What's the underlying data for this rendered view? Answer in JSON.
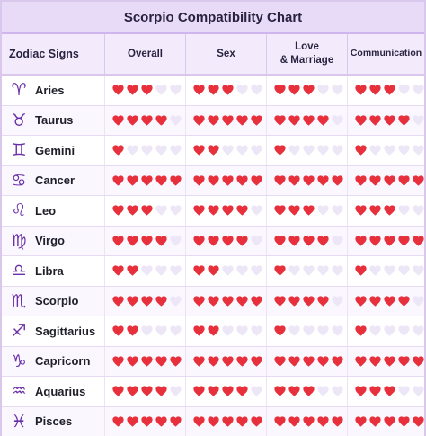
{
  "chart_data": {
    "type": "table",
    "title": "Scorpio Compatibility Chart",
    "row_header": "Zodiac Signs",
    "columns": [
      "Overall",
      "Sex",
      "Love\n& Marriage",
      "Communication"
    ],
    "scale_max": 5,
    "colors": {
      "filled_heart": "#e8303c",
      "empty_heart": "#ece6f7",
      "glyph": "#6a2fa8",
      "title_bg": "#e8dbf8"
    },
    "rows": [
      {
        "sign": "Aries",
        "glyph": "♈",
        "values": [
          3,
          3,
          3,
          3
        ]
      },
      {
        "sign": "Taurus",
        "glyph": "♉",
        "values": [
          4,
          5,
          4,
          4
        ]
      },
      {
        "sign": "Gemini",
        "glyph": "♊",
        "values": [
          1,
          2,
          1,
          1
        ]
      },
      {
        "sign": "Cancer",
        "glyph": "♋",
        "values": [
          5,
          5,
          5,
          5
        ]
      },
      {
        "sign": "Leo",
        "glyph": "♌",
        "values": [
          3,
          4,
          3,
          3
        ]
      },
      {
        "sign": "Virgo",
        "glyph": "♍",
        "values": [
          4,
          4,
          4,
          5
        ]
      },
      {
        "sign": "Libra",
        "glyph": "♎",
        "values": [
          2,
          2,
          1,
          1
        ]
      },
      {
        "sign": "Scorpio",
        "glyph": "♏",
        "values": [
          4,
          5,
          4,
          4
        ]
      },
      {
        "sign": "Sagittarius",
        "glyph": "♐",
        "values": [
          2,
          2,
          1,
          1
        ]
      },
      {
        "sign": "Capricorn",
        "glyph": "♑",
        "values": [
          5,
          5,
          5,
          5
        ]
      },
      {
        "sign": "Aquarius",
        "glyph": "♒",
        "values": [
          4,
          4,
          3,
          3
        ]
      },
      {
        "sign": "Pisces",
        "glyph": "♓",
        "values": [
          5,
          5,
          5,
          5
        ]
      }
    ]
  }
}
